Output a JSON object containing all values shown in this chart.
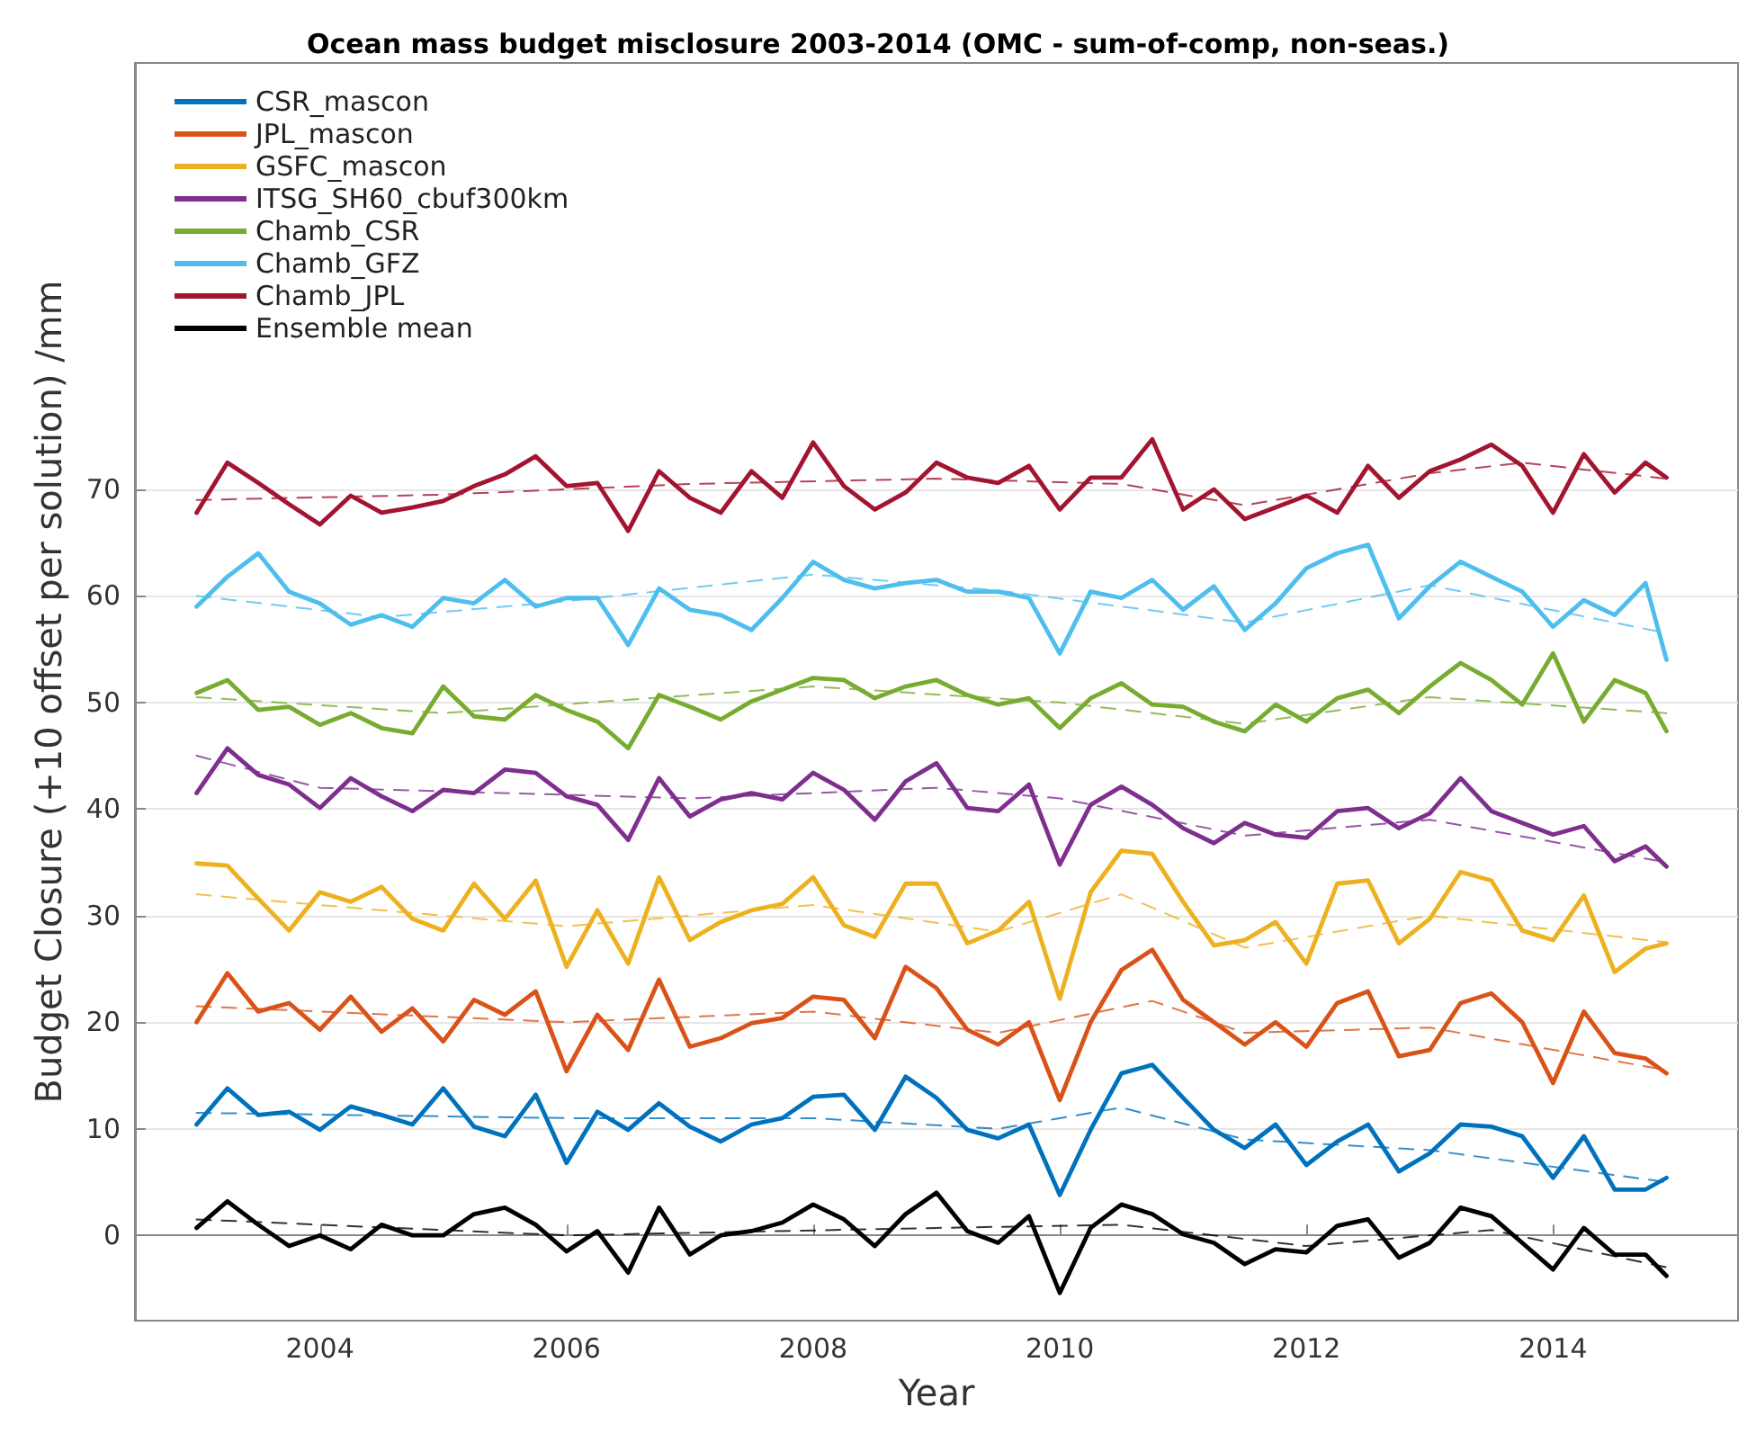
{
  "chart_data": {
    "type": "line",
    "title": "Ocean mass budget misclosure 2003-2014 (OMC - sum-of-comp, non-seas.)",
    "xlabel": "Year",
    "ylabel": "Budget Closure (+10 offset per solution) /mm",
    "xlim": [
      2002.5,
      2015.5
    ],
    "xticks": [
      2004,
      2006,
      2008,
      2010,
      2012,
      2014
    ],
    "ylim": [
      -8,
      110
    ],
    "yticks": [
      0,
      10,
      20,
      30,
      40,
      50,
      60,
      70
    ],
    "grid": "y",
    "legend": "top left",
    "marker": "none",
    "line_style": "solid",
    "x": [
      2003.0,
      2003.25,
      2003.5,
      2003.75,
      2004.0,
      2004.25,
      2004.5,
      2004.75,
      2005.0,
      2005.25,
      2005.5,
      2005.75,
      2006.0,
      2006.25,
      2006.5,
      2006.75,
      2007.0,
      2007.25,
      2007.5,
      2007.75,
      2008.0,
      2008.25,
      2008.5,
      2008.75,
      2009.0,
      2009.25,
      2009.5,
      2009.75,
      2010.0,
      2010.25,
      2010.5,
      2010.75,
      2011.0,
      2011.25,
      2011.5,
      2011.75,
      2012.0,
      2012.25,
      2012.5,
      2012.75,
      2013.0,
      2013.25,
      2013.5,
      2013.75,
      2014.0,
      2014.25,
      2014.5,
      2014.75,
      2014.92
    ],
    "series": [
      {
        "name": "CSR_mascon",
        "color": "#0072bd",
        "values": [
          10.4,
          13.8,
          11.3,
          11.6,
          9.9,
          12.1,
          11.3,
          10.4,
          13.8,
          10.2,
          9.3,
          13.2,
          6.8,
          11.6,
          9.9,
          12.4,
          10.2,
          8.8,
          10.4,
          11,
          13,
          13.2,
          9.9,
          14.9,
          12.9,
          9.9,
          9.1,
          10.4,
          3.8,
          9.9,
          15.2,
          16,
          12.9,
          9.9,
          8.2,
          10.4,
          6.6,
          8.8,
          10.4,
          6,
          7.7,
          10.4,
          10.2,
          9.3,
          5.4,
          9.3,
          4.3,
          4.3,
          5.4
        ]
      },
      {
        "name": "JPL_mascon",
        "color": "#d95319",
        "values": [
          20,
          24.6,
          21,
          21.8,
          19.3,
          22.4,
          19.1,
          21.3,
          18.2,
          22.1,
          20.7,
          22.9,
          15.4,
          20.7,
          17.4,
          24,
          17.7,
          18.5,
          19.9,
          20.4,
          22.4,
          22.1,
          18.5,
          25.2,
          23.2,
          19.3,
          17.9,
          20,
          12.7,
          20,
          24.9,
          26.8,
          22.1,
          20,
          17.9,
          20,
          17.7,
          21.8,
          22.9,
          16.8,
          17.4,
          21.8,
          22.7,
          20,
          14.3,
          21,
          17.1,
          16.6,
          15.2
        ]
      },
      {
        "name": "GSFC_mascon",
        "color": "#edb120",
        "values": [
          34.9,
          34.7,
          31.6,
          28.6,
          32.2,
          31.3,
          32.7,
          29.7,
          28.6,
          33,
          29.7,
          33.3,
          25.2,
          30.5,
          25.5,
          33.6,
          27.7,
          29.4,
          30.5,
          31.1,
          33.6,
          29.1,
          28,
          33,
          33,
          27.4,
          28.6,
          31.3,
          22.2,
          32.2,
          36.1,
          35.8,
          31.3,
          27.2,
          27.7,
          29.4,
          25.5,
          33,
          33.3,
          27.4,
          29.7,
          34.1,
          33.3,
          28.6,
          27.7,
          31.9,
          24.7,
          26.9,
          27.4
        ]
      },
      {
        "name": "ITSG_SH60_cbuf300km",
        "color": "#7e2f8e",
        "values": [
          41.5,
          45.7,
          43.2,
          42.3,
          40.1,
          42.9,
          41.2,
          39.8,
          41.8,
          41.5,
          43.7,
          43.4,
          41.2,
          40.4,
          37.1,
          42.9,
          39.3,
          40.9,
          41.5,
          40.9,
          43.4,
          41.8,
          39,
          42.6,
          44.3,
          40.1,
          39.8,
          42.3,
          34.8,
          40.4,
          42.1,
          40.4,
          38.2,
          36.8,
          38.7,
          37.6,
          37.3,
          39.8,
          40.1,
          38.2,
          39.6,
          42.9,
          39.8,
          38.7,
          37.6,
          38.4,
          35.1,
          36.5,
          34.6
        ]
      },
      {
        "name": "Chamb_CSR",
        "color": "#77ac30",
        "values": [
          50.9,
          52.1,
          49.3,
          49.6,
          47.9,
          49,
          47.6,
          47.1,
          51.5,
          48.7,
          48.4,
          50.7,
          49.3,
          48.2,
          45.7,
          50.7,
          49.6,
          48.4,
          50.1,
          51.2,
          52.3,
          52.1,
          50.4,
          51.5,
          52.1,
          50.7,
          49.8,
          50.4,
          47.6,
          50.4,
          51.8,
          49.8,
          49.6,
          48.2,
          47.3,
          49.8,
          48.2,
          50.4,
          51.2,
          49,
          51.5,
          53.7,
          52.1,
          49.8,
          54.6,
          48.2,
          52.1,
          50.9,
          47.3
        ]
      },
      {
        "name": "Chamb_GFZ",
        "color": "#4dbeee",
        "values": [
          59,
          61.8,
          64,
          60.4,
          59.3,
          57.3,
          58.2,
          57.1,
          59.8,
          59.3,
          61.5,
          59,
          59.8,
          59.8,
          55.4,
          60.7,
          58.7,
          58.2,
          56.8,
          59.8,
          63.2,
          61.5,
          60.7,
          61.2,
          61.5,
          60.4,
          60.4,
          59.8,
          54.6,
          60.4,
          59.8,
          61.5,
          58.7,
          60.9,
          56.8,
          59.3,
          62.6,
          64,
          64.8,
          57.9,
          60.9,
          63.2,
          61.8,
          60.4,
          57.1,
          59.6,
          58.2,
          61.2,
          54
        ]
      },
      {
        "name": "Chamb_JPL",
        "color": "#a2142f",
        "values": [
          67.8,
          72.5,
          70.6,
          68.6,
          66.7,
          69.4,
          67.8,
          68.3,
          68.9,
          70.3,
          71.4,
          73.1,
          70.3,
          70.6,
          66.1,
          71.7,
          69.2,
          67.8,
          71.7,
          69.2,
          74.4,
          70.3,
          68.1,
          69.7,
          72.5,
          71.1,
          70.6,
          72.2,
          68.1,
          71.1,
          71.1,
          74.7,
          68.1,
          70,
          67.2,
          68.3,
          69.4,
          67.8,
          72.2,
          69.2,
          71.7,
          72.8,
          74.2,
          72.2,
          67.8,
          73.3,
          69.7,
          72.5,
          71.1
        ]
      },
      {
        "name": "Ensemble mean",
        "color": "#000000",
        "values": [
          0.7,
          3.2,
          1,
          -1,
          0,
          -1.3,
          1,
          0,
          0,
          2,
          2.6,
          1,
          -1.5,
          0.4,
          -3.5,
          2.6,
          -1.8,
          0,
          0.4,
          1.2,
          2.9,
          1.5,
          -1,
          2,
          4,
          0.4,
          -0.7,
          1.8,
          -5.4,
          0.7,
          2.9,
          2,
          0.1,
          -0.7,
          -2.7,
          -1.3,
          -1.6,
          0.9,
          1.5,
          -2.1,
          -0.7,
          2.6,
          1.8,
          -0.7,
          -3.2,
          0.7,
          -1.8,
          -1.8,
          -3.8
        ]
      },
      {
        "color": "#0072bd",
        "line_style": "dashed",
        "x": [
          2003,
          2006,
          2008,
          2009.5,
          2010.5,
          2011.5,
          2013,
          2014.92
        ],
        "values": [
          11.5,
          11,
          11,
          10,
          12,
          9,
          8,
          5
        ]
      },
      {
        "color": "#d95319",
        "line_style": "dashed",
        "x": [
          2003,
          2006,
          2008,
          2009.5,
          2010.75,
          2011.5,
          2013,
          2014.92
        ],
        "values": [
          21.5,
          20,
          21,
          19,
          22,
          19,
          19.5,
          15.5
        ]
      },
      {
        "color": "#edb120",
        "line_style": "dashed",
        "x": [
          2003,
          2006,
          2008,
          2009.5,
          2010.5,
          2011.5,
          2013,
          2014.92
        ],
        "values": [
          32,
          29,
          31,
          28.5,
          32,
          27,
          30,
          27.5
        ]
      },
      {
        "color": "#7e2f8e",
        "line_style": "dashed",
        "x": [
          2003,
          2004,
          2007,
          2009,
          2010,
          2011.5,
          2013,
          2014.92
        ],
        "values": [
          45,
          42,
          41,
          42,
          41,
          37.5,
          39,
          35
        ]
      },
      {
        "color": "#77ac30",
        "line_style": "dashed",
        "x": [
          2003,
          2005,
          2008,
          2010,
          2011.5,
          2013,
          2014.92
        ],
        "values": [
          50.5,
          49,
          51.5,
          50,
          48,
          50.5,
          49
        ]
      },
      {
        "color": "#4dbeee",
        "line_style": "dashed",
        "x": [
          2003,
          2004.5,
          2006,
          2008,
          2009.5,
          2011.5,
          2013,
          2014.92
        ],
        "values": [
          60,
          58,
          59.5,
          62,
          60.5,
          57.5,
          61,
          56.5
        ]
      },
      {
        "color": "#a2142f",
        "line_style": "dashed",
        "x": [
          2003,
          2005,
          2007,
          2009,
          2010.5,
          2011.5,
          2013,
          2013.75,
          2014.92
        ],
        "values": [
          69,
          69.5,
          70.5,
          71,
          70.5,
          68.5,
          71.5,
          72.5,
          71
        ]
      },
      {
        "color": "#000000",
        "line_style": "dashed",
        "x": [
          2003,
          2006,
          2009,
          2010.5,
          2012,
          2013.5,
          2014.92
        ],
        "values": [
          1.5,
          0,
          0.7,
          1,
          -1,
          0.5,
          -3
        ]
      }
    ]
  }
}
